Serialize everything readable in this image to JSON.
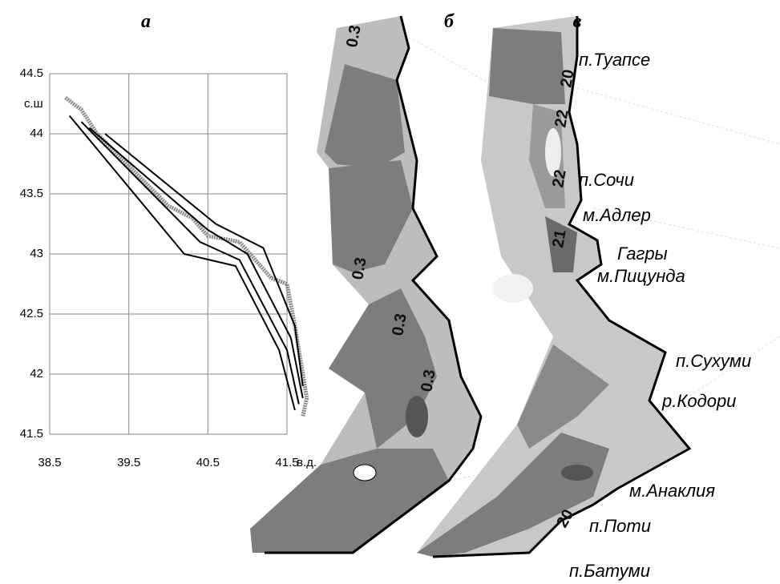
{
  "chart_data": {
    "type": "line",
    "panel_label": "а",
    "y_label": "с.ш",
    "x_label": "в.д.",
    "xlim": [
      38.5,
      41.5
    ],
    "xticks": [
      38.5,
      39.5,
      40.5,
      41.5
    ],
    "ylim": [
      41.5,
      44.5
    ],
    "yticks": [
      41.5,
      42,
      42.5,
      43,
      43.5,
      44,
      44.5
    ],
    "grid": true,
    "series": [
      {
        "color": "#8a8a8a",
        "x": [
          38.7,
          38.9,
          39.1,
          39.4,
          39.7,
          40.0,
          40.3,
          40.5,
          40.9,
          41.1,
          41.3,
          41.5,
          41.6,
          41.7,
          41.75,
          41.7
        ],
        "values": [
          44.3,
          44.2,
          44.0,
          43.8,
          43.6,
          43.4,
          43.3,
          43.15,
          43.1,
          42.95,
          42.8,
          42.75,
          42.4,
          42.0,
          41.8,
          41.65
        ]
      },
      {
        "color": "#000000",
        "x": [
          38.75,
          40.2,
          40.85,
          41.4,
          41.6
        ],
        "values": [
          44.15,
          43.0,
          42.9,
          42.2,
          41.7
        ]
      },
      {
        "color": "#000000",
        "x": [
          38.9,
          40.4,
          40.9,
          41.5,
          41.65
        ],
        "values": [
          44.1,
          43.1,
          42.95,
          42.2,
          41.75
        ]
      },
      {
        "color": "#000000",
        "x": [
          39.0,
          40.5,
          41.0,
          41.55,
          41.7
        ],
        "values": [
          44.05,
          43.2,
          43.0,
          42.3,
          41.8
        ]
      },
      {
        "color": "#000000",
        "x": [
          39.2,
          40.6,
          41.2,
          41.6,
          41.7
        ],
        "values": [
          44.0,
          43.25,
          43.05,
          42.4,
          41.9
        ]
      }
    ]
  },
  "maps": [
    {
      "panel_label": "б",
      "contour_labels": [
        "0.3",
        "0.3",
        "0.3",
        "0.3"
      ]
    },
    {
      "panel_label": "в",
      "contour_labels": [
        "20",
        "22",
        "22",
        "21",
        "20"
      ]
    }
  ],
  "place_names": [
    "п.Туапсе",
    "п.Сочи",
    "м.Адлер",
    "Гагры",
    "м.Пицунда",
    "п.Сухуми",
    "р.Кодори",
    "м.Анаклия",
    "п.Поти",
    "п.Батуми"
  ]
}
